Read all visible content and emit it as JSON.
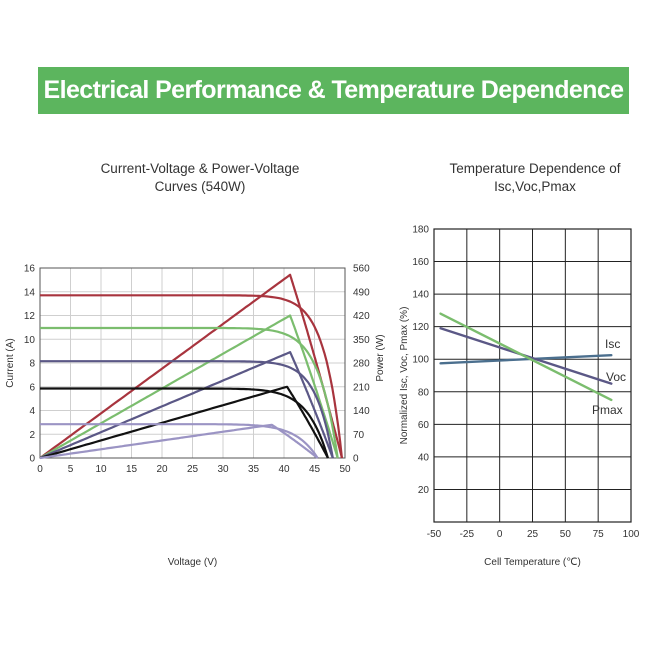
{
  "banner": {
    "title": "Electrical Performance & Temperature Dependence",
    "color": "#5cb55e"
  },
  "chart_data": [
    {
      "type": "line",
      "title": "Current-Voltage & Power-Voltage Curves (540W)",
      "title_lines": [
        "Current-Voltage & Power-Voltage",
        "Curves (540W)"
      ],
      "xlabel": "Voltage (V)",
      "ylabel": "Current (A)",
      "y2label": "Power (W)",
      "xlim": [
        0,
        50
      ],
      "ylim": [
        0,
        16
      ],
      "y2lim": [
        0,
        560
      ],
      "xticks": [
        "0",
        "5",
        "10",
        "15",
        "20",
        "25",
        "30",
        "35",
        "40",
        "45",
        "50"
      ],
      "yticks": [
        "0",
        "2",
        "4",
        "6",
        "8",
        "10",
        "12",
        "14",
        "16"
      ],
      "y2ticks": [
        "0",
        "70",
        "140",
        "210",
        "280",
        "350",
        "420",
        "490",
        "560"
      ],
      "grid": true,
      "legend": "none",
      "series": [
        {
          "color": "#a8343e",
          "isc": 13.7,
          "voc": 49.5,
          "vmp": 41.0,
          "pmax": 540
        },
        {
          "color": "#7bbd6e",
          "isc": 10.95,
          "voc": 48.8,
          "vmp": 41.0,
          "pmax": 420
        },
        {
          "color": "#5b5886",
          "isc": 8.15,
          "voc": 48.0,
          "vmp": 41.0,
          "pmax": 312
        },
        {
          "color": "#111111",
          "isc": 5.85,
          "voc": 47.2,
          "vmp": 40.5,
          "pmax": 210
        },
        {
          "color": "#9b94c4",
          "isc": 2.85,
          "voc": 45.5,
          "vmp": 38.0,
          "pmax": 98
        }
      ]
    },
    {
      "type": "line",
      "title": "Temperature Dependence of Isc,Voc,Pmax",
      "title_lines": [
        "Temperature Dependence of",
        "Isc,Voc,Pmax"
      ],
      "xlabel": "Cell Temperature (℃)",
      "ylabel": "Normalized Isc, Voc, Pmax (%)",
      "xlim": [
        -50,
        100
      ],
      "ylim": [
        0,
        180
      ],
      "xticks": [
        "-50",
        "-25",
        "0",
        "25",
        "50",
        "75",
        "100"
      ],
      "yticks": [
        "20",
        "40",
        "60",
        "80",
        "100",
        "120",
        "140",
        "160",
        "180"
      ],
      "grid": true,
      "series": [
        {
          "name": "Isc",
          "color": "#4b6f8e",
          "x": [
            -45,
            85
          ],
          "y": [
            97.5,
            102.5
          ]
        },
        {
          "name": "Voc",
          "color": "#5b5886",
          "x": [
            -45,
            85
          ],
          "y": [
            119,
            85
          ]
        },
        {
          "name": "Pmax",
          "color": "#7bbd6e",
          "x": [
            -45,
            85
          ],
          "y": [
            128,
            75
          ]
        }
      ]
    }
  ]
}
